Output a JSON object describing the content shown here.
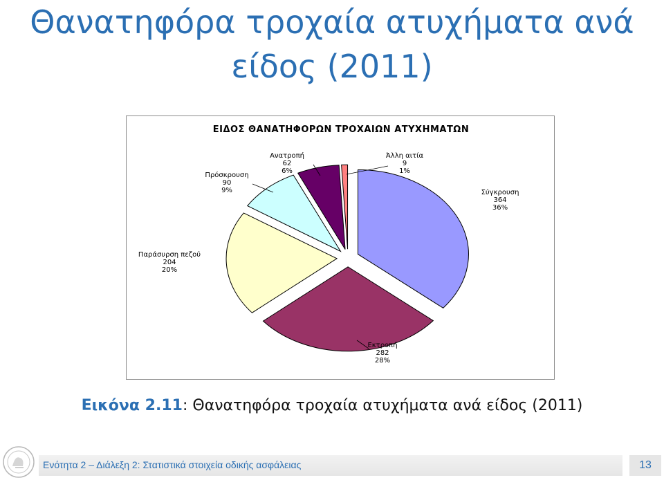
{
  "slide": {
    "title_line1": "Θανατηφόρα τροχαία ατυχήματα ανά",
    "title_line2": "είδος (2011)"
  },
  "caption": {
    "label": "Εικόνα 2.11",
    "text": ": Θανατηφόρα τροχαία ατυχήματα ανά είδος (2011)"
  },
  "footer": {
    "text": "Ενότητα 2 – Διάλεξη 2: Στατιστικά στοιχεία οδικής ασφάλειας",
    "page_number": "13"
  },
  "chart_data": {
    "type": "pie",
    "title": "ΕΙΔΟΣ ΘΑΝΑΤΗΦΟΡΩΝ ΤΡΟΧΑΙΩΝ ΑΤΥΧΗΜΑΤΩΝ",
    "exploded": true,
    "slices": [
      {
        "name": "Σύγκρουση",
        "value": 364,
        "percent": "36%",
        "color": "#9999ff"
      },
      {
        "name": "Εκτροπή",
        "value": 282,
        "percent": "28%",
        "color": "#993366"
      },
      {
        "name": "Παράσυρση πεζού",
        "value": 204,
        "percent": "20%",
        "color": "#ffffcc"
      },
      {
        "name": "Πρόσκρουση",
        "value": 90,
        "percent": "9%",
        "color": "#ccffff"
      },
      {
        "name": "Ανατροπή",
        "value": 62,
        "percent": "6%",
        "color": "#660066"
      },
      {
        "name": "Άλλη αιτία",
        "value": 9,
        "percent": "1%",
        "color": "#ff8080"
      }
    ]
  }
}
